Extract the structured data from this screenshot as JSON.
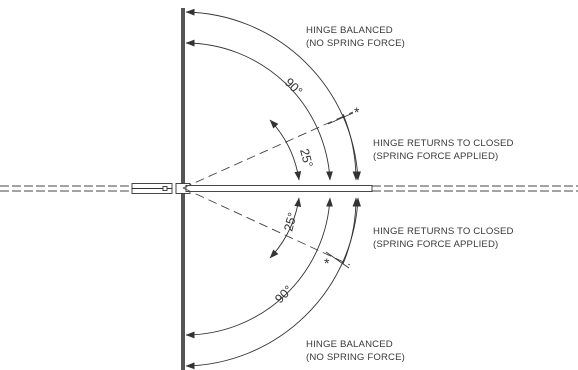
{
  "labels": {
    "top_balanced_line1": "HINGE BALANCED",
    "top_balanced_line2": "(NO SPRING FORCE)",
    "upper_return_line1": "HINGE RETURNS TO CLOSED",
    "upper_return_line2": "(SPRING FORCE APPLIED)",
    "lower_return_line1": "HINGE RETURNS TO CLOSED",
    "lower_return_line2": "(SPRING FORCE APPLIED)",
    "bottom_balanced_line1": "HINGE BALANCED",
    "bottom_balanced_line2": "(NO SPRING FORCE)"
  },
  "angles": {
    "upper_full": "90°",
    "upper_partial": "25°",
    "lower_full": "90°",
    "lower_partial": "25°"
  },
  "markers": {
    "upper": "*",
    "lower": "*"
  },
  "colors": {
    "ink": "#333333",
    "wall": "#555555",
    "text": "#3a3a3a"
  }
}
